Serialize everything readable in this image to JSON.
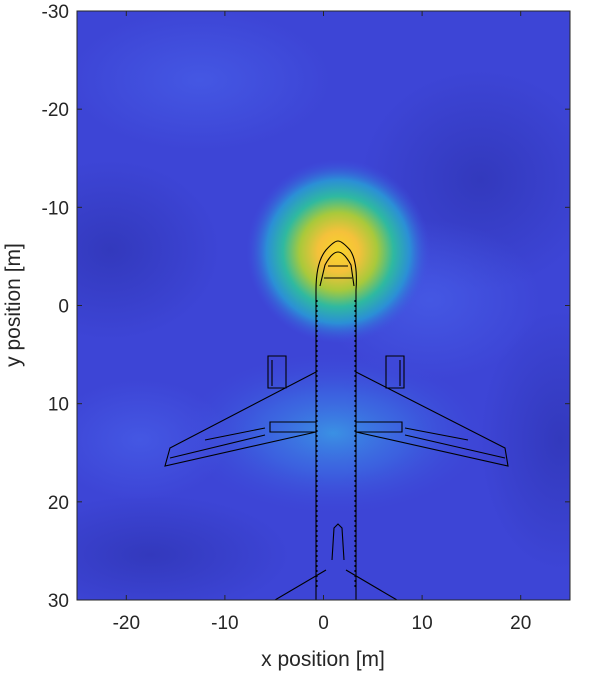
{
  "chart_data": {
    "type": "heatmap",
    "title": "",
    "xlabel": "x position [m]",
    "ylabel": "y position [m]",
    "xlim": [
      -25,
      25
    ],
    "ylim": [
      -30,
      30
    ],
    "y_axis_direction": "reversed",
    "x_ticks": [
      -20,
      -10,
      0,
      10,
      20
    ],
    "x_tick_labels": [
      "-20",
      "-10",
      "0",
      "10",
      "20"
    ],
    "y_ticks": [
      -30,
      -20,
      -10,
      0,
      10,
      20,
      30
    ],
    "y_tick_labels": [
      "-30",
      "-20",
      "-10",
      "0",
      "10",
      "20",
      "30"
    ],
    "colormap": "parula",
    "grid": false,
    "legend": "none",
    "hotspots": [
      {
        "x": 1.5,
        "y": -5.5,
        "intensity": 1.0
      },
      {
        "x": 1.0,
        "y": 13.0,
        "intensity": 0.35
      }
    ],
    "overlay": "aircraft top-view outline"
  }
}
